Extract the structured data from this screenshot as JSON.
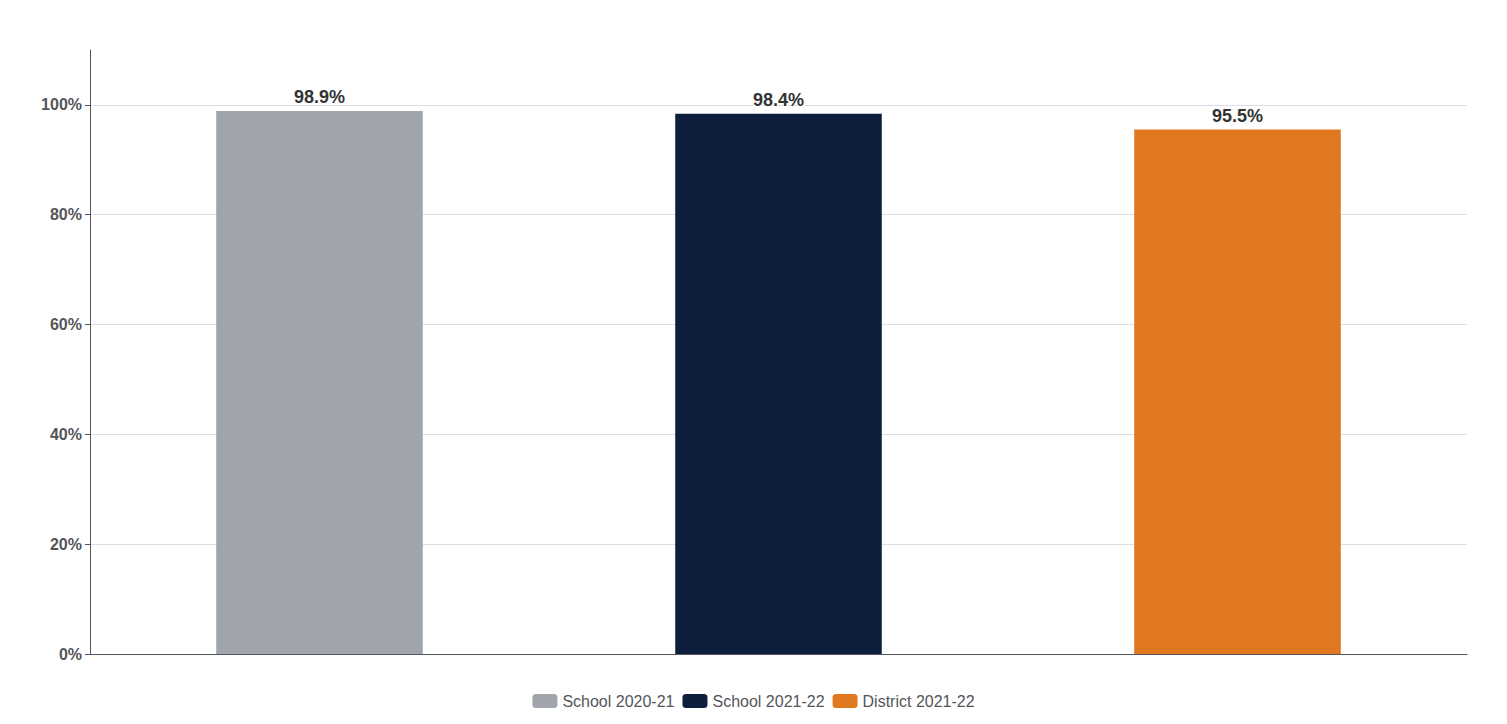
{
  "chart_data": {
    "type": "bar",
    "categories": [
      "School 2020-21",
      "School 2021-22",
      "District 2021-22"
    ],
    "values": [
      98.9,
      98.4,
      95.5
    ],
    "value_labels": [
      "98.9%",
      "98.4%",
      "95.5%"
    ],
    "colors": [
      "#a0a5ab",
      "#0d1f3c",
      "#e07820"
    ],
    "ylim": [
      0,
      110
    ],
    "yticks": [
      {
        "value": 0,
        "label": "0%"
      },
      {
        "value": 20,
        "label": "20%"
      },
      {
        "value": 40,
        "label": "40%"
      },
      {
        "value": 60,
        "label": "60%"
      },
      {
        "value": 80,
        "label": "80%"
      },
      {
        "value": 100,
        "label": "100%"
      }
    ],
    "grid": true,
    "data_labels": true,
    "tick_labels": "y",
    "legend": "bottom"
  }
}
